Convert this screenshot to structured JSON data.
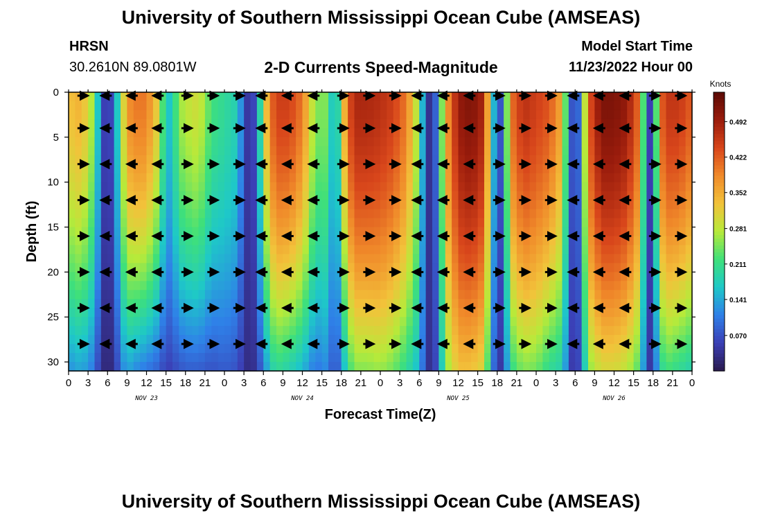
{
  "header": {
    "title": "University of Southern Mississippi Ocean Cube (AMSEAS)",
    "station": "HRSN",
    "coords": "30.2610N  89.0801W",
    "subtitle": "2-D Currents Speed-Magnitude",
    "model_start_label": "Model Start Time",
    "model_start_value": "11/23/2022 Hour 00"
  },
  "footer": {
    "title": "University of Southern Mississippi Ocean Cube (AMSEAS)"
  },
  "colors": {
    "ramp": [
      "#2a1a4e",
      "#3b3fb5",
      "#2f80e8",
      "#1ec8c8",
      "#3fe07a",
      "#b7ea3a",
      "#f2c23a",
      "#f08a2a",
      "#d8461b",
      "#9a1c0c",
      "#5a0a04"
    ]
  },
  "chart_data": {
    "type": "heatmap",
    "xlabel": "Forecast Time(Z)",
    "ylabel": "Depth (ft)",
    "x_range": [
      0,
      96
    ],
    "y_range": [
      0,
      31
    ],
    "x_ticks": [
      0,
      3,
      6,
      9,
      12,
      15,
      18,
      21,
      24,
      27,
      30,
      33,
      36,
      39,
      42,
      45,
      48,
      51,
      54,
      57,
      60,
      63,
      66,
      69,
      72,
      75,
      78,
      81,
      84,
      87,
      90,
      93,
      96
    ],
    "x_tick_labels": [
      "0",
      "3",
      "6",
      "9",
      "12",
      "15",
      "18",
      "21",
      "0",
      "3",
      "6",
      "9",
      "12",
      "15",
      "18",
      "21",
      "0",
      "3",
      "6",
      "9",
      "12",
      "15",
      "18",
      "21",
      "0",
      "3",
      "6",
      "9",
      "12",
      "15",
      "18",
      "21",
      "0"
    ],
    "y_ticks": [
      0,
      5,
      10,
      15,
      20,
      25,
      30
    ],
    "y_tick_labels": [
      "0",
      "5",
      "10",
      "15",
      "20",
      "25",
      "30"
    ],
    "date_labels": [
      {
        "hour": 12,
        "text": "NOV 23"
      },
      {
        "hour": 36,
        "text": "NOV 24"
      },
      {
        "hour": 60,
        "text": "NOV 25"
      },
      {
        "hour": 84,
        "text": "NOV 26"
      }
    ],
    "colorbar": {
      "unit": "Knots",
      "min": 0.0,
      "max": 0.55,
      "tick_values": [
        0.492,
        0.422,
        0.352,
        0.281,
        0.211,
        0.141,
        0.07
      ],
      "tick_labels": [
        "0.492",
        "0.422",
        "0.352",
        "0.281",
        "0.211",
        "0.141",
        "0.070"
      ]
    },
    "vector_depths": [
      0,
      4,
      8,
      12,
      16,
      20,
      24,
      28
    ],
    "vector_hours": [
      2,
      6,
      10,
      14,
      18,
      22,
      26,
      30,
      34,
      38,
      42,
      46,
      50,
      54,
      58,
      62,
      66,
      70,
      74,
      78,
      82,
      86,
      90,
      94
    ],
    "speed_profile": {
      "hours": [
        0,
        2,
        4,
        5,
        6,
        7,
        8,
        9,
        10,
        12,
        14,
        15,
        16,
        17,
        18,
        20,
        22,
        24,
        26,
        27,
        28,
        29,
        30,
        31,
        32,
        34,
        36,
        38,
        40,
        41,
        42,
        43,
        44,
        46,
        48,
        50,
        52,
        54,
        55,
        56,
        57,
        58,
        60,
        62,
        64,
        65,
        66,
        67,
        68,
        70,
        72,
        74,
        76,
        77,
        78,
        79,
        80,
        82,
        84,
        86,
        88,
        89,
        90,
        91,
        92,
        94,
        96
      ],
      "surface_knots": [
        0.33,
        0.35,
        0.25,
        0.08,
        0.03,
        0.09,
        0.25,
        0.37,
        0.4,
        0.4,
        0.3,
        0.15,
        0.18,
        0.26,
        0.28,
        0.3,
        0.22,
        0.2,
        0.18,
        0.07,
        0.02,
        0.1,
        0.28,
        0.4,
        0.45,
        0.45,
        0.4,
        0.25,
        0.25,
        0.1,
        0.28,
        0.42,
        0.48,
        0.48,
        0.47,
        0.45,
        0.4,
        0.25,
        0.05,
        0.02,
        0.15,
        0.35,
        0.5,
        0.52,
        0.48,
        0.25,
        0.05,
        0.1,
        0.4,
        0.47,
        0.45,
        0.43,
        0.35,
        0.12,
        0.03,
        0.15,
        0.42,
        0.52,
        0.52,
        0.5,
        0.4,
        0.05,
        0.06,
        0.4,
        0.46,
        0.46,
        0.42
      ],
      "bottom_knots": [
        0.12,
        0.14,
        0.1,
        0.03,
        0.02,
        0.03,
        0.1,
        0.14,
        0.12,
        0.1,
        0.08,
        0.05,
        0.06,
        0.07,
        0.08,
        0.08,
        0.07,
        0.08,
        0.07,
        0.04,
        0.02,
        0.05,
        0.1,
        0.17,
        0.2,
        0.18,
        0.15,
        0.1,
        0.12,
        0.05,
        0.12,
        0.2,
        0.25,
        0.25,
        0.26,
        0.24,
        0.2,
        0.15,
        0.05,
        0.02,
        0.1,
        0.25,
        0.33,
        0.33,
        0.3,
        0.15,
        0.03,
        0.06,
        0.2,
        0.25,
        0.24,
        0.2,
        0.18,
        0.08,
        0.02,
        0.1,
        0.25,
        0.3,
        0.3,
        0.28,
        0.22,
        0.04,
        0.05,
        0.18,
        0.22,
        0.2,
        0.18
      ]
    }
  }
}
